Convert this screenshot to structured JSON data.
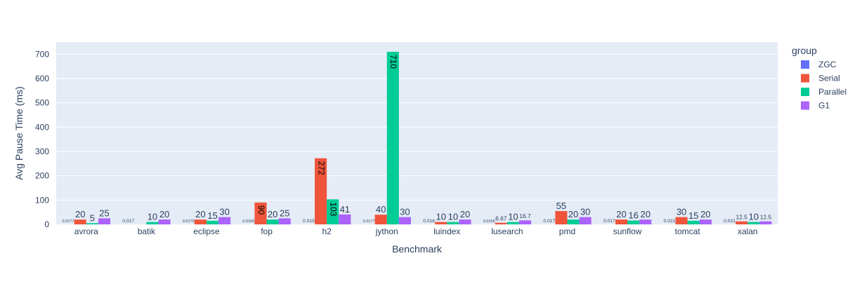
{
  "chart_data": {
    "type": "bar",
    "title": "",
    "xlabel": "Benchmark",
    "ylabel": "Avg Pause Time (ms)",
    "ylim": [
      0,
      750
    ],
    "yticks": [
      0,
      100,
      200,
      300,
      400,
      500,
      600,
      700
    ],
    "grid": true,
    "legend_title": "group",
    "legend_position": "top-right",
    "categories": [
      "avrora",
      "batik",
      "eclipse",
      "fop",
      "h2",
      "jython",
      "luindex",
      "lusearch",
      "pmd",
      "sunflow",
      "tomcat",
      "xalan"
    ],
    "series": [
      {
        "name": "ZGC",
        "color": "#636efa",
        "values": [
          0.0177,
          0.017,
          0.0175,
          0.0165,
          0.015,
          0.0177,
          0.016,
          0.0165,
          0.017,
          0.017,
          0.021,
          0.021
        ],
        "labels": [
          "0.0177",
          "0.017",
          "0.0175",
          "0.0165",
          "0.015",
          "0.0177",
          "0.016",
          "0.0165",
          "0.017",
          "0.017",
          "0.021",
          "0.021"
        ]
      },
      {
        "name": "Serial",
        "color": "#ef553b",
        "values": [
          20,
          null,
          20,
          90,
          272,
          40,
          10,
          6.67,
          55,
          20,
          30,
          12.5
        ],
        "labels": [
          "20",
          "",
          "20",
          "90",
          "272",
          "40",
          "10",
          "6.67",
          "55",
          "20",
          "30",
          "12.5"
        ]
      },
      {
        "name": "Parallel",
        "color": "#00cc96",
        "values": [
          5,
          10,
          15,
          20,
          103,
          710,
          10,
          10,
          20,
          16,
          15,
          10
        ],
        "labels": [
          "5",
          "10",
          "15",
          "20",
          "103",
          "710",
          "10",
          "10",
          "20",
          "16",
          "15",
          "10"
        ]
      },
      {
        "name": "G1",
        "color": "#ab63fa",
        "values": [
          25,
          20,
          30,
          25,
          41,
          30,
          20,
          16.7,
          30,
          20,
          20,
          12.5
        ],
        "labels": [
          "25",
          "20",
          "30",
          "25",
          "41",
          "30",
          "20",
          "16.7",
          "30",
          "20",
          "20",
          "12.5"
        ]
      }
    ]
  },
  "colors": {
    "plot_background": "#e5ecf6",
    "grid": "#ffffff",
    "text": "#2a3f5f"
  }
}
